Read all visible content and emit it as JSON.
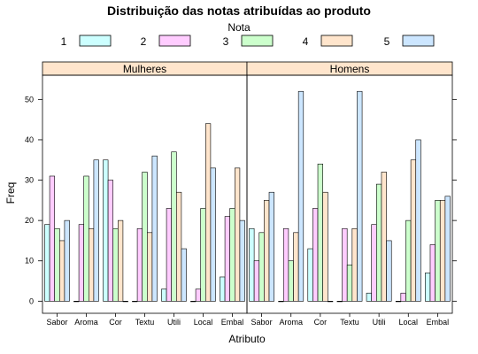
{
  "chart_data": {
    "type": "bar",
    "title": "Distribuição das notas atribuídas ao produto",
    "xlabel": "Atributo",
    "ylabel": "Freq",
    "ylim": [
      -3,
      56
    ],
    "yticks": [
      0,
      10,
      20,
      30,
      40,
      50
    ],
    "grid": false,
    "legend": {
      "title": "Nota",
      "placement": "top",
      "entries": [
        {
          "name": "1",
          "color": "#ccffff"
        },
        {
          "name": "2",
          "color": "#ffccff"
        },
        {
          "name": "3",
          "color": "#ccffcc"
        },
        {
          "name": "4",
          "color": "#ffe5cc"
        },
        {
          "name": "5",
          "color": "#cce6ff"
        }
      ]
    },
    "categories": [
      "Sabor",
      "Aroma",
      "Cor",
      "Textu",
      "Utili",
      "Local",
      "Embal"
    ],
    "panels": [
      {
        "name": "Mulheres",
        "series": [
          {
            "name": "1",
            "values": [
              19,
              0,
              35,
              0,
              3,
              0,
              6
            ]
          },
          {
            "name": "2",
            "values": [
              31,
              19,
              30,
              18,
              23,
              3,
              21
            ]
          },
          {
            "name": "3",
            "values": [
              18,
              31,
              18,
              32,
              37,
              23,
              23
            ]
          },
          {
            "name": "4",
            "values": [
              15,
              18,
              20,
              17,
              27,
              44,
              33
            ]
          },
          {
            "name": "5",
            "values": [
              20,
              35,
              0,
              36,
              13,
              33,
              20
            ]
          }
        ]
      },
      {
        "name": "Homens",
        "series": [
          {
            "name": "1",
            "values": [
              18,
              0,
              13,
              0,
              2,
              0,
              7
            ]
          },
          {
            "name": "2",
            "values": [
              10,
              18,
              23,
              18,
              19,
              2,
              14
            ]
          },
          {
            "name": "3",
            "values": [
              17,
              10,
              34,
              9,
              29,
              20,
              25
            ]
          },
          {
            "name": "4",
            "values": [
              25,
              17,
              27,
              18,
              32,
              35,
              25
            ]
          },
          {
            "name": "5",
            "values": [
              27,
              52,
              0,
              52,
              15,
              40,
              26
            ]
          }
        ]
      }
    ]
  }
}
